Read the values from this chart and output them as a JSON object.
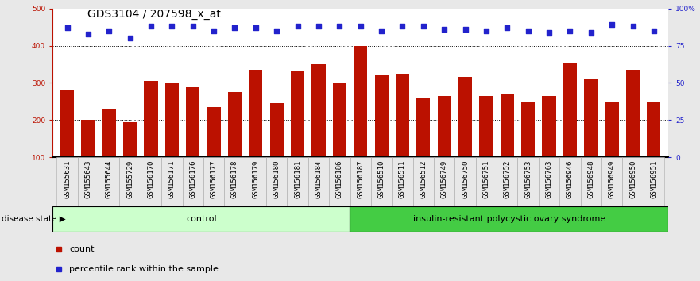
{
  "title": "GDS3104 / 207598_x_at",
  "categories": [
    "GSM155631",
    "GSM155643",
    "GSM155644",
    "GSM155729",
    "GSM156170",
    "GSM156171",
    "GSM156176",
    "GSM156177",
    "GSM156178",
    "GSM156179",
    "GSM156180",
    "GSM156181",
    "GSM156184",
    "GSM156186",
    "GSM156187",
    "GSM156510",
    "GSM156511",
    "GSM156512",
    "GSM156749",
    "GSM156750",
    "GSM156751",
    "GSM156752",
    "GSM156753",
    "GSM156763",
    "GSM156946",
    "GSM156948",
    "GSM156949",
    "GSM156950",
    "GSM156951"
  ],
  "bar_values": [
    280,
    200,
    230,
    195,
    305,
    300,
    290,
    235,
    275,
    335,
    245,
    330,
    350,
    300,
    400,
    320,
    325,
    260,
    265,
    315,
    265,
    270,
    250,
    265,
    355,
    310,
    250,
    335,
    250
  ],
  "percentile_values": [
    87,
    83,
    85,
    80,
    88,
    88,
    88,
    85,
    87,
    87,
    85,
    88,
    88,
    88,
    88,
    85,
    88,
    88,
    86,
    86,
    85,
    87,
    85,
    84,
    85,
    84,
    89,
    88,
    85
  ],
  "bar_color": "#bb1100",
  "percentile_color": "#2222cc",
  "ylim_left": [
    100,
    500
  ],
  "ylim_right": [
    0,
    100
  ],
  "yticks_left": [
    100,
    200,
    300,
    400,
    500
  ],
  "yticks_right": [
    0,
    25,
    50,
    75,
    100
  ],
  "ytick_labels_right": [
    "0",
    "25",
    "50",
    "75",
    "100%"
  ],
  "control_count": 14,
  "group1_label": "control",
  "group2_label": "insulin-resistant polycystic ovary syndrome",
  "group1_color": "#ccffcc",
  "group2_color": "#44cc44",
  "disease_state_label": "disease state",
  "legend_bar_label": "count",
  "legend_pct_label": "percentile rank within the sample",
  "background_color": "#e8e8e8",
  "plot_bg_color": "#ffffff",
  "title_fontsize": 10,
  "tick_fontsize": 6.5,
  "label_fontsize": 8
}
